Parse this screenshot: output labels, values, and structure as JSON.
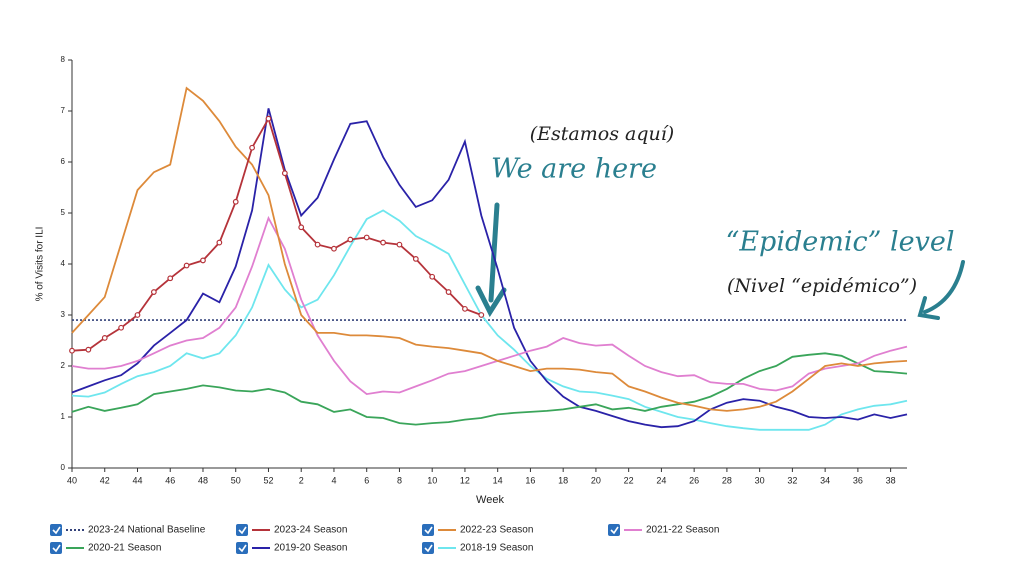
{
  "chart_data": {
    "type": "line",
    "ylabel": "% of Visits for ILI",
    "xlabel": "Week",
    "categories": [
      "40",
      null,
      "42",
      null,
      "44",
      null,
      "46",
      null,
      "48",
      null,
      "50",
      null,
      "52",
      null,
      "2",
      null,
      "4",
      null,
      "6",
      null,
      "8",
      null,
      "10",
      null,
      "12",
      null,
      "14",
      null,
      "16",
      null,
      "18",
      null,
      "20",
      null,
      "22",
      null,
      "24",
      null,
      "26",
      null,
      "28",
      null,
      "30",
      null,
      "32",
      null,
      "34",
      null,
      "36",
      null,
      "38",
      null
    ],
    "ylim": [
      0,
      8
    ],
    "yticks": [
      0,
      1,
      2,
      3,
      4,
      5,
      6,
      7,
      8
    ],
    "baseline": {
      "name": "2023-24 National Baseline",
      "color": "#34427a",
      "value": 2.9
    },
    "series": [
      {
        "name": "2023-24 Season",
        "color": "#b5333a",
        "markers": true,
        "values": [
          2.3,
          2.32,
          2.55,
          2.75,
          3.0,
          3.45,
          3.72,
          3.97,
          4.07,
          4.42,
          5.22,
          6.28,
          6.85,
          5.78,
          4.72,
          4.38,
          4.3,
          4.48,
          4.52,
          4.42,
          4.38,
          4.1,
          3.75,
          3.45,
          3.12,
          3.0,
          null,
          null,
          null,
          null,
          null,
          null,
          null,
          null,
          null,
          null,
          null,
          null,
          null,
          null,
          null,
          null,
          null,
          null,
          null,
          null,
          null,
          null,
          null,
          null,
          null,
          null
        ]
      },
      {
        "name": "2022-23 Season",
        "color": "#dd8a3a",
        "values": [
          2.65,
          3.0,
          3.35,
          4.4,
          5.45,
          5.8,
          5.95,
          7.45,
          7.2,
          6.8,
          6.3,
          5.95,
          5.35,
          4.0,
          3.0,
          2.65,
          2.65,
          2.6,
          2.6,
          2.58,
          2.55,
          2.42,
          2.38,
          2.35,
          2.3,
          2.25,
          2.1,
          2.0,
          1.9,
          1.95,
          1.95,
          1.93,
          1.88,
          1.85,
          1.6,
          1.5,
          1.38,
          1.28,
          1.22,
          1.15,
          1.12,
          1.15,
          1.2,
          1.3,
          1.5,
          1.75,
          2.0,
          2.05,
          2.0,
          2.05,
          2.08,
          2.1
        ]
      },
      {
        "name": "2021-22 Season",
        "color": "#e07fd0",
        "values": [
          2.0,
          1.95,
          1.95,
          2.0,
          2.1,
          2.25,
          2.4,
          2.5,
          2.55,
          2.75,
          3.15,
          3.95,
          4.9,
          4.3,
          3.3,
          2.6,
          2.1,
          1.7,
          1.45,
          1.5,
          1.48,
          1.6,
          1.72,
          1.85,
          1.9,
          2.0,
          2.1,
          2.2,
          2.3,
          2.38,
          2.55,
          2.45,
          2.4,
          2.42,
          2.2,
          2.0,
          1.88,
          1.8,
          1.82,
          1.68,
          1.65,
          1.65,
          1.55,
          1.52,
          1.6,
          1.85,
          1.95,
          2.0,
          2.05,
          2.2,
          2.3,
          2.38
        ]
      },
      {
        "name": "2020-21 Season",
        "color": "#3aa55a",
        "values": [
          1.1,
          1.2,
          1.12,
          1.18,
          1.25,
          1.45,
          1.5,
          1.55,
          1.62,
          1.58,
          1.52,
          1.5,
          1.55,
          1.48,
          1.3,
          1.25,
          1.1,
          1.15,
          1.0,
          0.98,
          0.88,
          0.85,
          0.88,
          0.9,
          0.95,
          0.98,
          1.05,
          1.08,
          1.1,
          1.12,
          1.15,
          1.2,
          1.25,
          1.15,
          1.18,
          1.12,
          1.2,
          1.25,
          1.3,
          1.4,
          1.55,
          1.75,
          1.9,
          2.0,
          2.18,
          2.22,
          2.25,
          2.2,
          2.05,
          1.9,
          1.88,
          1.85
        ]
      },
      {
        "name": "2019-20 Season",
        "color": "#2a22a8",
        "values": [
          1.48,
          1.6,
          1.72,
          1.82,
          2.05,
          2.4,
          2.65,
          2.9,
          3.42,
          3.25,
          3.95,
          5.05,
          7.05,
          5.85,
          4.95,
          5.3,
          6.05,
          6.75,
          6.8,
          6.1,
          5.55,
          5.12,
          5.25,
          5.65,
          6.4,
          4.95,
          3.9,
          2.75,
          2.1,
          1.7,
          1.4,
          1.2,
          1.12,
          1.02,
          0.92,
          0.85,
          0.8,
          0.82,
          0.92,
          1.15,
          1.28,
          1.35,
          1.32,
          1.2,
          1.12,
          1.0,
          0.98,
          1.0,
          0.95,
          1.05,
          0.98,
          1.05
        ]
      },
      {
        "name": "2018-19 Season",
        "color": "#6ee6ee",
        "values": [
          1.42,
          1.4,
          1.48,
          1.65,
          1.8,
          1.88,
          2.0,
          2.25,
          2.15,
          2.25,
          2.6,
          3.15,
          3.98,
          3.5,
          3.15,
          3.3,
          3.78,
          4.35,
          4.88,
          5.05,
          4.85,
          4.55,
          4.38,
          4.2,
          3.6,
          3.0,
          2.6,
          2.32,
          2.0,
          1.75,
          1.6,
          1.5,
          1.48,
          1.42,
          1.35,
          1.2,
          1.1,
          1.0,
          0.95,
          0.88,
          0.82,
          0.78,
          0.75,
          0.75,
          0.75,
          0.75,
          0.85,
          1.05,
          1.15,
          1.22,
          1.25,
          1.32
        ]
      }
    ],
    "annotations": [
      "(Estamos aquí)",
      "We are here",
      "“Epidemic” level",
      "(Nivel “epidémico”)"
    ]
  }
}
